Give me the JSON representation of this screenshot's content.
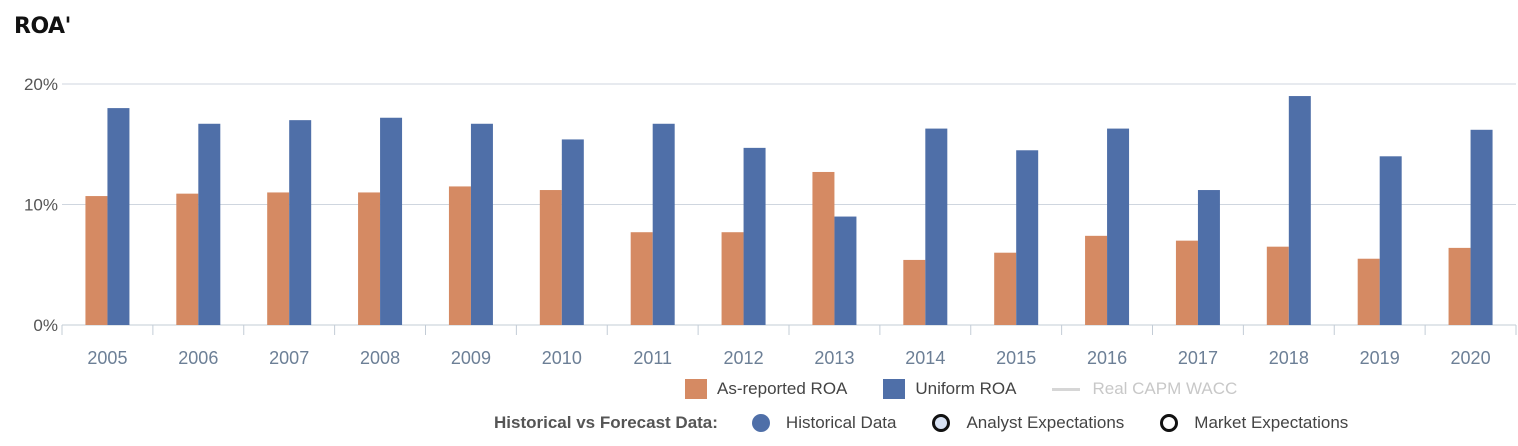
{
  "title": "ROA'",
  "chart_data": {
    "type": "bar",
    "categories": [
      "2005",
      "2006",
      "2007",
      "2008",
      "2009",
      "2010",
      "2011",
      "2012",
      "2013",
      "2014",
      "2015",
      "2016",
      "2017",
      "2018",
      "2019",
      "2020"
    ],
    "series": [
      {
        "name": "As-reported ROA",
        "color": "#d58a63",
        "values": [
          10.7,
          10.9,
          11.0,
          11.0,
          11.5,
          11.2,
          7.7,
          7.7,
          12.7,
          5.4,
          6.0,
          7.4,
          7.0,
          6.5,
          5.5,
          6.4
        ]
      },
      {
        "name": "Uniform ROA",
        "color": "#4f6fa8",
        "values": [
          18.0,
          16.7,
          17.0,
          17.2,
          16.7,
          15.4,
          16.7,
          14.7,
          9.0,
          16.3,
          14.5,
          16.3,
          11.2,
          19.0,
          14.0,
          16.2
        ]
      }
    ],
    "yticks": [
      "0%",
      "10%",
      "20%"
    ],
    "ytick_values": [
      0,
      10,
      20
    ],
    "ylim": [
      0,
      20
    ],
    "grid": true,
    "legend_position": "bottom-center"
  },
  "legend": {
    "items": [
      {
        "label": "As-reported ROA",
        "color": "#d58a63",
        "kind": "box",
        "disabled": false
      },
      {
        "label": "Uniform ROA",
        "color": "#4f6fa8",
        "kind": "box",
        "disabled": false
      },
      {
        "label": "Real CAPM WACC",
        "color": "#d6d6d6",
        "kind": "line",
        "disabled": true
      }
    ]
  },
  "forecast_toggle": {
    "label": "Historical vs Forecast Data:",
    "options": [
      {
        "label": "Historical Data",
        "style": "filled"
      },
      {
        "label": "Analyst Expectations",
        "style": "ring-light"
      },
      {
        "label": "Market Expectations",
        "style": "ring"
      }
    ]
  }
}
